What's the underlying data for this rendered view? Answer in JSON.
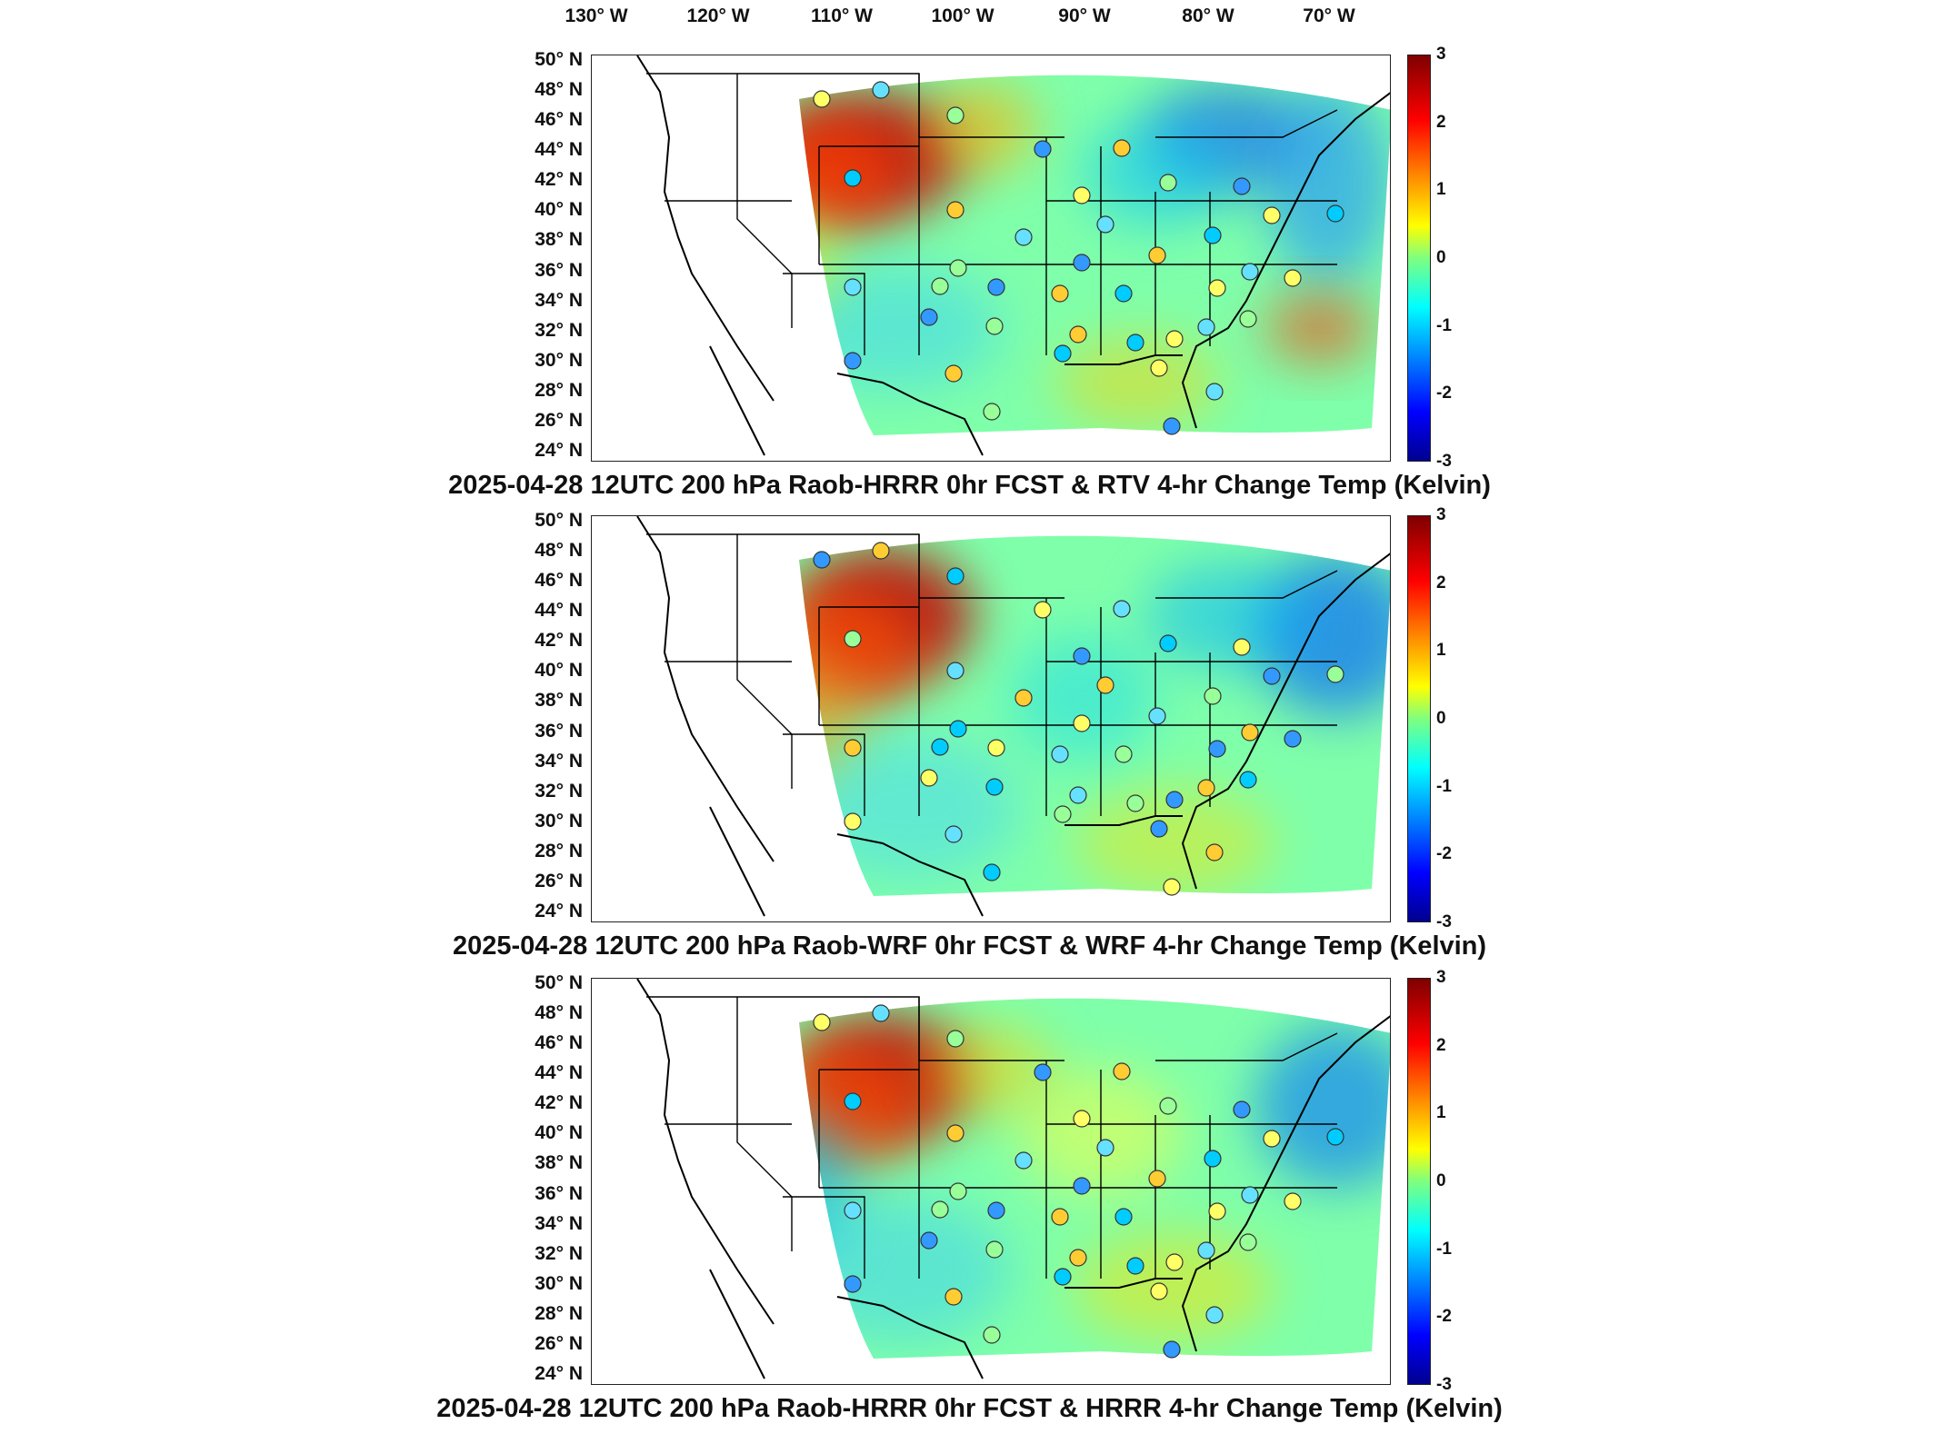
{
  "longitude_labels": [
    "130° W",
    "120° W",
    "110° W",
    "100° W",
    "90° W",
    "80° W",
    "70° W"
  ],
  "latitude_labels": [
    "50° N",
    "48° N",
    "46° N",
    "44° N",
    "42° N",
    "40° N",
    "38° N",
    "36° N",
    "34° N",
    "32° N",
    "30° N",
    "28° N",
    "26° N",
    "24° N"
  ],
  "colorbar": {
    "ticks": [
      "3",
      "2",
      "1",
      "0",
      "-1",
      "-2",
      "-3"
    ],
    "range": [
      -3,
      3
    ],
    "colormap": "jet",
    "colors": [
      "#7f0000",
      "#ff0000",
      "#ff8c00",
      "#ffff00",
      "#7fff7f",
      "#00ffff",
      "#0080ff",
      "#0000ff",
      "#00008f"
    ]
  },
  "panels": [
    {
      "title": "2025-04-28 12UTC 200 hPa Raob-HRRR 0hr FCST & RTV 4-hr Change Temp (Kelvin)"
    },
    {
      "title": "2025-04-28 12UTC 200 hPa Raob-WRF 0hr FCST & WRF 4-hr Change Temp (Kelvin)"
    },
    {
      "title": "2025-04-28 12UTC 200 hPa Raob-HRRR 0hr FCST & HRRR 4-hr Change Temp (Kelvin)"
    }
  ]
}
